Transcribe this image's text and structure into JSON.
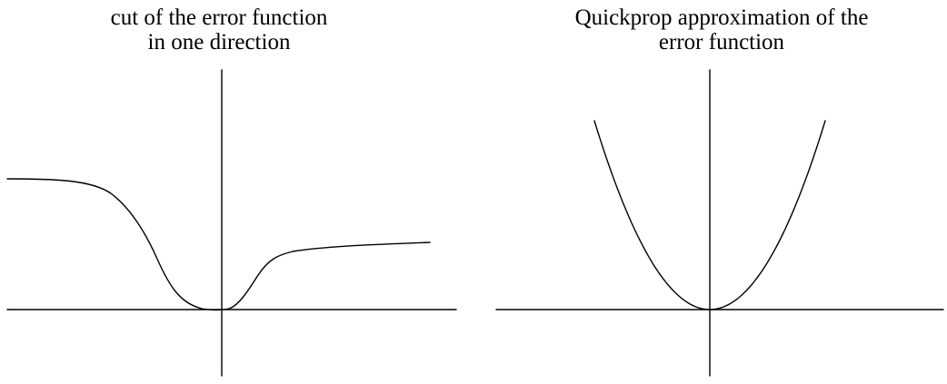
{
  "panels": [
    {
      "title_line1": "cut of the error function",
      "title_line2": "in one direction",
      "curve": "error-function-cut"
    },
    {
      "title_line1": "Quickprop approximation of the",
      "title_line2": "error function",
      "curve": "parabola"
    }
  ],
  "colors": {
    "ink": "#000000",
    "background": "#ffffff"
  }
}
